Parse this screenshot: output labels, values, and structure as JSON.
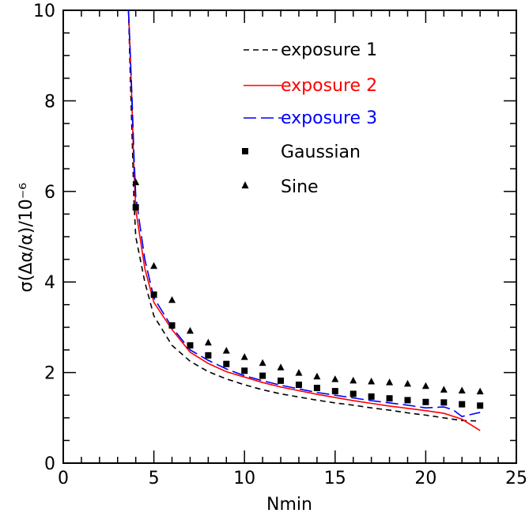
{
  "chart_data": {
    "type": "line",
    "title": "",
    "xlabel": "Nmin",
    "ylabel": "σ(Δα/α)/10⁻⁶",
    "xlim": [
      0,
      25
    ],
    "ylim": [
      0,
      10
    ],
    "x_ticks": [
      "0",
      "5",
      "10",
      "15",
      "20",
      "25"
    ],
    "y_ticks": [
      "0",
      "2",
      "4",
      "6",
      "8",
      "10"
    ],
    "grid": false,
    "legend_position": "top-right",
    "series": [
      {
        "name": "exposure 1",
        "kind": "line",
        "style": "dashed",
        "color": "#000000",
        "x": [
          3.6,
          3.7,
          3.8,
          3.9,
          4,
          4.5,
          5,
          6,
          7,
          8,
          9,
          10,
          11,
          12,
          13,
          14,
          15,
          16,
          17,
          18,
          19,
          20,
          21,
          22,
          23
        ],
        "y": [
          10.0,
          8.5,
          7.2,
          5.8,
          5.0,
          4.0,
          3.25,
          2.6,
          2.25,
          2.02,
          1.86,
          1.73,
          1.62,
          1.53,
          1.46,
          1.39,
          1.33,
          1.28,
          1.22,
          1.17,
          1.11,
          1.06,
          1.0,
          0.94,
          0.93
        ]
      },
      {
        "name": "exposure 2",
        "kind": "line",
        "style": "solid",
        "color": "#ff0000",
        "x": [
          3.6,
          3.7,
          3.8,
          3.9,
          4,
          4.5,
          5,
          6,
          7,
          8,
          9,
          10,
          11,
          12,
          13,
          14,
          15,
          16,
          17,
          18,
          19,
          20,
          21,
          22,
          23
        ],
        "y": [
          10.0,
          9.0,
          7.8,
          6.5,
          5.6,
          4.3,
          3.55,
          2.95,
          2.45,
          2.2,
          2.02,
          1.9,
          1.78,
          1.68,
          1.6,
          1.52,
          1.45,
          1.38,
          1.32,
          1.26,
          1.21,
          1.16,
          1.1,
          0.97,
          0.72
        ]
      },
      {
        "name": "exposure 3",
        "kind": "line",
        "style": "long-dashed",
        "color": "#0000ff",
        "x": [
          3.6,
          3.7,
          3.8,
          3.9,
          4,
          4.5,
          5,
          6,
          7,
          8,
          9,
          10,
          11,
          12,
          13,
          14,
          15,
          16,
          17,
          18,
          19,
          20,
          21,
          21.5,
          22,
          23
        ],
        "y": [
          10.0,
          9.0,
          8.0,
          6.8,
          5.9,
          4.5,
          3.65,
          3.0,
          2.5,
          2.27,
          2.08,
          1.93,
          1.82,
          1.72,
          1.64,
          1.56,
          1.5,
          1.44,
          1.38,
          1.33,
          1.28,
          1.22,
          1.24,
          1.18,
          1.03,
          1.12
        ]
      },
      {
        "name": "Gaussian",
        "kind": "points",
        "marker": "square",
        "color": "#000000",
        "x": [
          4,
          5,
          6,
          7,
          8,
          9,
          10,
          11,
          12,
          13,
          14,
          15,
          16,
          17,
          18,
          19,
          20,
          21,
          22,
          23
        ],
        "y": [
          5.65,
          3.72,
          3.04,
          2.6,
          2.38,
          2.19,
          2.04,
          1.93,
          1.82,
          1.73,
          1.66,
          1.59,
          1.53,
          1.47,
          1.43,
          1.39,
          1.35,
          1.34,
          1.3,
          1.27
        ]
      },
      {
        "name": "Sine",
        "kind": "points",
        "marker": "triangle",
        "color": "#000000",
        "x": [
          4,
          5,
          6,
          7,
          8,
          9,
          10,
          11,
          12,
          13,
          14,
          15,
          16,
          17,
          18,
          19,
          20,
          21,
          22,
          23
        ],
        "y": [
          6.2,
          4.35,
          3.6,
          2.92,
          2.66,
          2.48,
          2.34,
          2.21,
          2.11,
          1.99,
          1.91,
          1.85,
          1.82,
          1.8,
          1.78,
          1.75,
          1.7,
          1.62,
          1.6,
          1.58
        ]
      }
    ]
  }
}
